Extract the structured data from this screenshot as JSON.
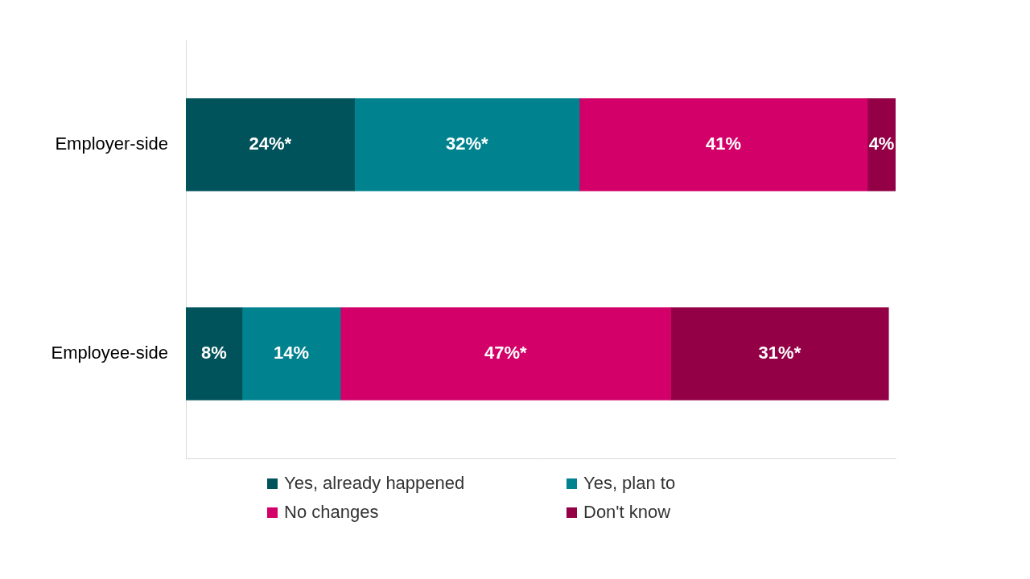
{
  "chart_data": {
    "type": "bar",
    "orientation": "horizontal",
    "stacked": true,
    "data_labels": true,
    "tick_labels": "y",
    "grid": false,
    "legend": "bottom",
    "categories": [
      "Employer-side",
      "Employee-side"
    ],
    "xlim": [
      0,
      101
    ],
    "series": [
      {
        "name": "Yes, already happened",
        "color": "#00535a",
        "values": [
          24,
          8
        ],
        "value_labels": [
          "24%*",
          "8%"
        ]
      },
      {
        "name": "Yes, plan to",
        "color": "#00838f",
        "values": [
          32,
          14
        ],
        "value_labels": [
          "32%*",
          "14%"
        ]
      },
      {
        "name": "No changes",
        "color": "#d20068",
        "values": [
          41,
          47
        ],
        "value_labels": [
          "41%",
          "47%*"
        ]
      },
      {
        "name": "Don't know",
        "color": "#930045",
        "values": [
          4,
          31
        ],
        "value_labels": [
          "4%",
          "31%*"
        ]
      }
    ]
  }
}
